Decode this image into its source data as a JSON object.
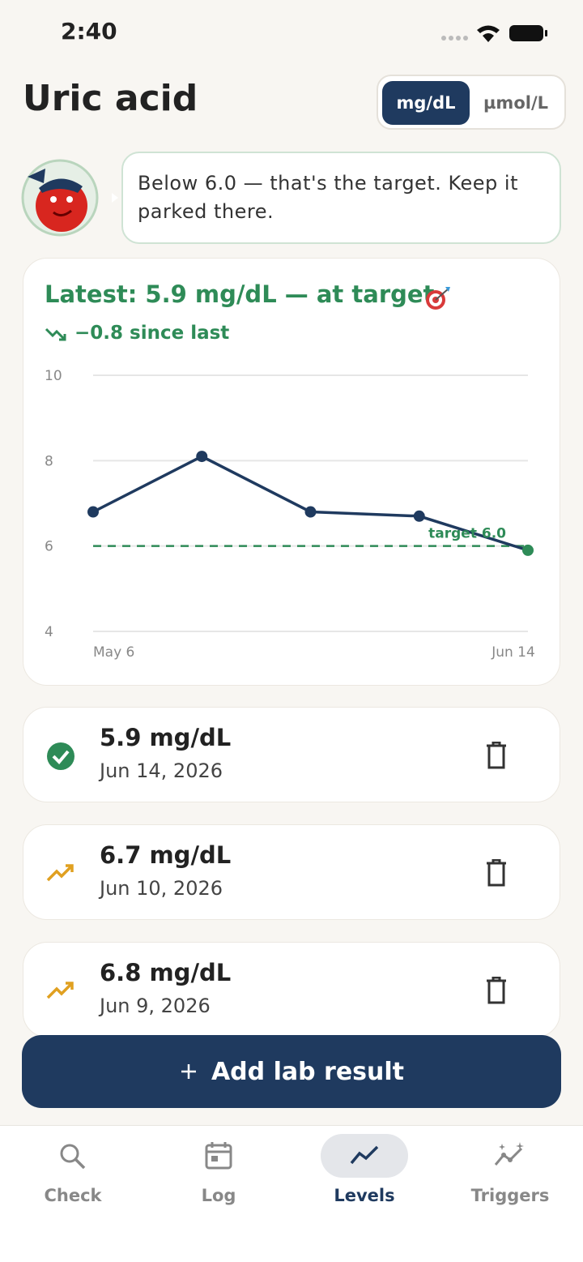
{
  "status_bar": {
    "time": "2:40"
  },
  "header": {
    "title": "Uric acid",
    "units": [
      "mg/dL",
      "µmol/L"
    ]
  },
  "coach": {
    "message": "Below 6.0 — that's the target. Keep it parked there."
  },
  "summary": {
    "latest": "Latest: 5.9 mg/dL — at target",
    "change": "−0.8 since last"
  },
  "chart_data": {
    "type": "line",
    "categories": [
      "May 6",
      null,
      null,
      null,
      "Jun 14"
    ],
    "series": [
      {
        "name": "Uric acid",
        "color": "#1f3a5f",
        "values": [
          6.8,
          8.1,
          6.8,
          6.7,
          5.9
        ]
      }
    ],
    "target": {
      "value": 6,
      "label": "target 6.0",
      "color": "#2e8b57"
    },
    "ylim": [
      4,
      10
    ],
    "yticks": [
      4,
      6,
      8,
      10
    ],
    "grid": true
  },
  "results": [
    {
      "value": "5.9 mg/dL",
      "date": "Jun 14, 2026"
    },
    {
      "value": "6.7 mg/dL",
      "date": "Jun 10, 2026"
    },
    {
      "value": "6.8 mg/dL",
      "date": "Jun 9, 2026"
    }
  ],
  "add_button": "Add lab result",
  "nav": [
    "Check",
    "Log",
    "Levels",
    "Triggers"
  ]
}
